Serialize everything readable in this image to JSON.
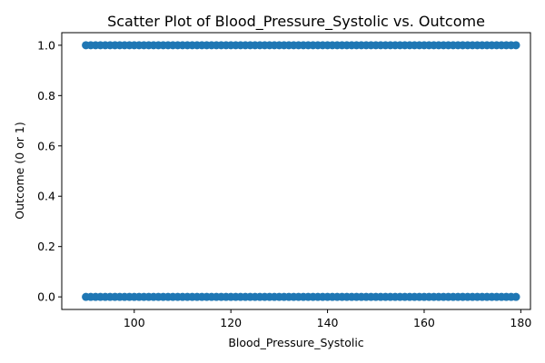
{
  "chart_data": {
    "type": "scatter",
    "title": "Scatter Plot of Blood_Pressure_Systolic vs. Outcome",
    "xlabel": "Blood_Pressure_Systolic",
    "ylabel": "Outcome (0 or 1)",
    "xlim": [
      85,
      182
    ],
    "ylim": [
      -0.05,
      1.05
    ],
    "x_ticks": [
      100,
      120,
      140,
      160,
      180
    ],
    "y_ticks": [
      0.0,
      0.2,
      0.4,
      0.6,
      0.8,
      1.0
    ],
    "x_tick_labels": [
      "100",
      "120",
      "140",
      "160",
      "180"
    ],
    "y_tick_labels": [
      "0.0",
      "0.2",
      "0.4",
      "0.6",
      "0.8",
      "1.0"
    ],
    "grid": false,
    "series": [
      {
        "color": "#1f77b4",
        "x": [
          90,
          91,
          92,
          93,
          94,
          95,
          96,
          97,
          98,
          99,
          100,
          101,
          102,
          103,
          104,
          105,
          106,
          107,
          108,
          109,
          110,
          111,
          112,
          113,
          114,
          115,
          116,
          117,
          118,
          119,
          120,
          121,
          122,
          123,
          124,
          125,
          126,
          127,
          128,
          129,
          130,
          131,
          132,
          133,
          134,
          135,
          136,
          137,
          138,
          139,
          140,
          141,
          142,
          143,
          144,
          145,
          146,
          147,
          148,
          149,
          150,
          151,
          152,
          153,
          154,
          155,
          156,
          157,
          158,
          159,
          160,
          161,
          162,
          163,
          164,
          165,
          166,
          167,
          168,
          169,
          170,
          171,
          172,
          173,
          174,
          175,
          176,
          177,
          178,
          179,
          90,
          91,
          92,
          93,
          94,
          95,
          96,
          97,
          98,
          99,
          100,
          101,
          102,
          103,
          104,
          105,
          106,
          107,
          108,
          109,
          110,
          111,
          112,
          113,
          114,
          115,
          116,
          117,
          118,
          119,
          120,
          121,
          122,
          123,
          124,
          125,
          126,
          127,
          128,
          129,
          130,
          131,
          132,
          133,
          134,
          135,
          136,
          137,
          138,
          139,
          140,
          141,
          142,
          143,
          144,
          145,
          146,
          147,
          148,
          149,
          150,
          151,
          152,
          153,
          154,
          155,
          156,
          157,
          158,
          159,
          160,
          161,
          162,
          163,
          164,
          165,
          166,
          167,
          168,
          169,
          170,
          171,
          172,
          173,
          174,
          175,
          176,
          177,
          178,
          179
        ],
        "y": [
          1,
          1,
          1,
          1,
          1,
          1,
          1,
          1,
          1,
          1,
          1,
          1,
          1,
          1,
          1,
          1,
          1,
          1,
          1,
          1,
          1,
          1,
          1,
          1,
          1,
          1,
          1,
          1,
          1,
          1,
          1,
          1,
          1,
          1,
          1,
          1,
          1,
          1,
          1,
          1,
          1,
          1,
          1,
          1,
          1,
          1,
          1,
          1,
          1,
          1,
          1,
          1,
          1,
          1,
          1,
          1,
          1,
          1,
          1,
          1,
          1,
          1,
          1,
          1,
          1,
          1,
          1,
          1,
          1,
          1,
          1,
          1,
          1,
          1,
          1,
          1,
          1,
          1,
          1,
          1,
          1,
          1,
          1,
          1,
          1,
          1,
          1,
          1,
          1,
          1,
          0,
          0,
          0,
          0,
          0,
          0,
          0,
          0,
          0,
          0,
          0,
          0,
          0,
          0,
          0,
          0,
          0,
          0,
          0,
          0,
          0,
          0,
          0,
          0,
          0,
          0,
          0,
          0,
          0,
          0,
          0,
          0,
          0,
          0,
          0,
          0,
          0,
          0,
          0,
          0,
          0,
          0,
          0,
          0,
          0,
          0,
          0,
          0,
          0,
          0,
          0,
          0,
          0,
          0,
          0,
          0,
          0,
          0,
          0,
          0,
          0,
          0,
          0,
          0,
          0,
          0,
          0,
          0,
          0,
          0,
          0,
          0,
          0,
          0,
          0,
          0,
          0,
          0,
          0,
          0,
          0,
          0,
          0,
          0,
          0,
          0,
          0,
          0,
          0,
          0
        ]
      }
    ]
  }
}
